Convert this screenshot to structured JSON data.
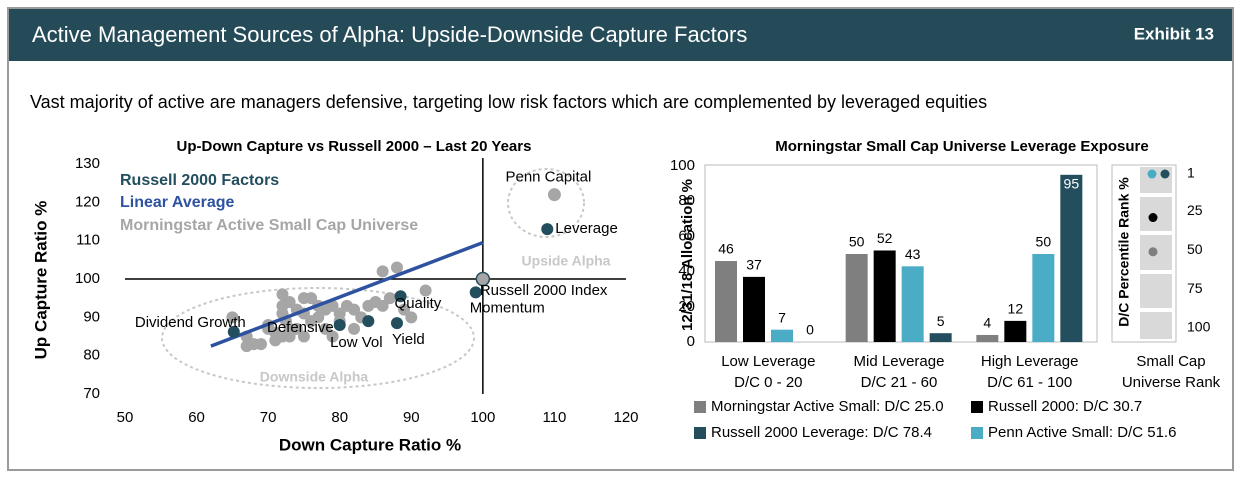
{
  "header": {
    "title": "Active Management Sources of Alpha: Upside-Downside Capture Factors",
    "exhibit": "Exhibit 13"
  },
  "subtitle": "Vast majority of active are managers defensive, targeting low risk factors which are complemented by leveraged equities",
  "chart_data": [
    {
      "type": "scatter",
      "title": "Up-Down Capture vs Russell 2000 – Last 20 Years",
      "x_label": "Down Capture Ratio %",
      "y_label": "Up Capture Ratio %",
      "xlim": [
        50,
        120
      ],
      "xticks": [
        50,
        60,
        70,
        80,
        90,
        100,
        110,
        120
      ],
      "ylim": [
        70,
        130
      ],
      "yticks": [
        70,
        80,
        90,
        100,
        110,
        120,
        130
      ],
      "series": [
        {
          "name": "Russell 2000 Factors",
          "color": "#234e5e",
          "x": [
            109,
            99,
            88.5,
            88,
            84,
            80,
            65.2
          ],
          "y": [
            113,
            96.5,
            95.5,
            88.5,
            89,
            88,
            86.2
          ],
          "labels": [
            "Leverage",
            "Momentum",
            "Quality",
            "Yield",
            "Low Vol",
            "Defensive",
            "Dividend Growth"
          ]
        },
        {
          "name": "Linear Average",
          "color": "#2f52a0",
          "mode": "line",
          "x": [
            62,
            100
          ],
          "y": [
            82.5,
            109.5
          ]
        },
        {
          "name": "Morningstar Active Small Cap Universe",
          "color": "#a6a6a6",
          "x": [
            65,
            67,
            68,
            67,
            69,
            70,
            71,
            72,
            72,
            72,
            72.5,
            73,
            73,
            72,
            71,
            74,
            75,
            75,
            76,
            76,
            77,
            77,
            78,
            78,
            79,
            80,
            80,
            81,
            82,
            83,
            84,
            85,
            86,
            87,
            86,
            88,
            89,
            90,
            92,
            74,
            70,
            73,
            79,
            75,
            82
          ],
          "y": [
            90,
            85,
            83,
            82.5,
            83,
            88,
            86,
            96,
            93,
            91,
            89,
            87,
            85,
            85,
            84,
            87,
            95,
            91,
            89,
            95,
            93,
            90,
            92,
            87,
            93,
            91,
            89,
            93,
            92,
            90,
            93,
            94,
            93,
            95,
            102,
            103,
            92,
            90,
            97,
            92,
            87,
            94,
            85,
            85,
            87
          ]
        }
      ],
      "points": [
        {
          "label": "Penn Capital",
          "x": 110,
          "y": 122,
          "color": "#a6a6a6"
        },
        {
          "label": "Russell 2000 Index",
          "x": 100,
          "y": 100,
          "color": "#a6a6a6"
        }
      ],
      "annotations": [
        "Upside Alpha",
        "Downside Alpha"
      ]
    },
    {
      "type": "bar",
      "title": "Morningstar Small Cap Universe Leverage Exposure",
      "y_label": "12/31/18 Allocation %",
      "categories": [
        [
          "Low Leverage",
          "D/C 0 - 20"
        ],
        [
          "Mid Leverage",
          "D/C 21 - 60"
        ],
        [
          "High Leverage",
          "D/C 61 - 100"
        ]
      ],
      "ylim": [
        0,
        100
      ],
      "yticks": [
        0,
        20,
        40,
        60,
        80,
        100
      ],
      "series": [
        {
          "name": "Morningstar Active Small: D/C 25.0",
          "color": "#7f7f7f",
          "values": [
            46,
            50,
            4
          ]
        },
        {
          "name": "Russell 2000: D/C 30.7",
          "color": "#000000",
          "values": [
            37,
            52,
            12
          ]
        },
        {
          "name": "Penn Active Small: D/C 51.6",
          "color": "#4bacc6",
          "values": [
            7,
            43,
            50
          ]
        },
        {
          "name": "Russell 2000 Leverage: D/C 78.4",
          "color": "#234e5e",
          "values": [
            0,
            5,
            95
          ]
        }
      ]
    },
    {
      "type": "dot",
      "y_label": "D/C Percentile Rank %",
      "x_label": [
        "Small Cap",
        "Universe Rank"
      ],
      "ylim": [
        1,
        100
      ],
      "yticks": [
        1,
        25,
        50,
        75,
        100
      ],
      "reversed": true,
      "series": [
        {
          "color": "#7f7f7f",
          "values": [
            51
          ]
        },
        {
          "color": "#000000",
          "values": [
            29
          ]
        },
        {
          "color": "#4bacc6",
          "values": [
            1
          ]
        },
        {
          "color": "#234e5e",
          "values": [
            1
          ]
        }
      ]
    }
  ]
}
